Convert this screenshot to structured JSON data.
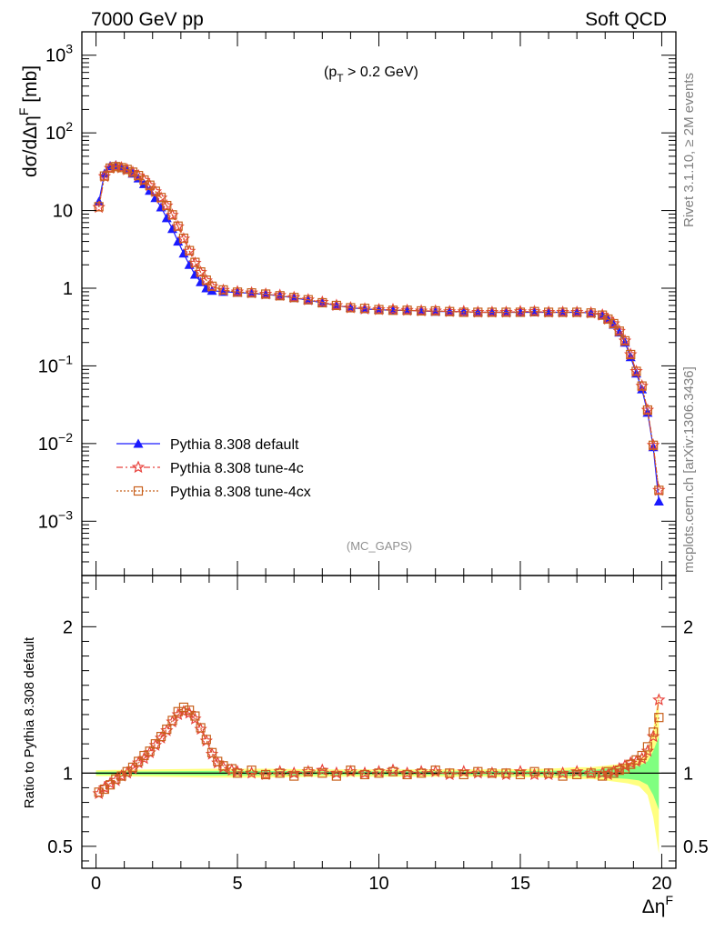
{
  "header": {
    "left": "7000 GeV pp",
    "right": "Soft QCD"
  },
  "annotations": {
    "cut_prefix": "(p",
    "cut_sub": "T",
    "cut_suffix": " > 0.2 GeV)",
    "analysis": "(MC_GAPS)",
    "side_top": "Rivet 3.1.10, ≥ 2M events",
    "side_bottom": "mcplots.cern.ch [arXiv:1306.3436]"
  },
  "colors": {
    "default": "#1a1aff",
    "tune4c": "#e8423c",
    "tune4cx": "#c8601c",
    "band_yellow": "#ffff80",
    "band_green": "#80ff80",
    "axis": "#000000",
    "side_text": "#808080"
  },
  "chart_data": [
    {
      "type": "line",
      "panel": "main",
      "ylabel_main": "dσ/dΔη",
      "ylabel_sup": "F",
      "ylabel_unit": " [mb]",
      "yscale": "log",
      "xlim": [
        -0.5,
        20.5
      ],
      "ylim": [
        0.0002,
        2000
      ],
      "y_tick_labels": [
        {
          "value": 1000,
          "base": "10",
          "exp": "3"
        },
        {
          "value": 100,
          "base": "10",
          "exp": "2"
        },
        {
          "value": 10,
          "base": "10",
          "exp": ""
        },
        {
          "value": 1,
          "base": "1",
          "exp": ""
        },
        {
          "value": 0.1,
          "base": "10",
          "exp": "−1"
        },
        {
          "value": 0.01,
          "base": "10",
          "exp": "−2"
        },
        {
          "value": 0.001,
          "base": "10",
          "exp": "−3"
        }
      ],
      "legend_position": "center-left",
      "x": [
        0.1,
        0.3,
        0.5,
        0.7,
        0.9,
        1.1,
        1.3,
        1.5,
        1.7,
        1.9,
        2.1,
        2.3,
        2.5,
        2.7,
        2.9,
        3.1,
        3.3,
        3.5,
        3.7,
        3.9,
        4.1,
        4.5,
        5.0,
        5.5,
        6.0,
        6.5,
        7.0,
        7.5,
        8.0,
        8.5,
        9.0,
        9.5,
        10.0,
        10.5,
        11.0,
        11.5,
        12.0,
        12.5,
        13.0,
        13.5,
        14.0,
        14.5,
        15.0,
        15.5,
        16.0,
        16.5,
        17.0,
        17.5,
        17.9,
        18.1,
        18.3,
        18.5,
        18.7,
        18.9,
        19.1,
        19.3,
        19.5,
        19.7,
        19.9
      ],
      "series": [
        {
          "name": "Pythia 8.308 default",
          "key": "default",
          "marker": "triangle",
          "values": [
            13.0,
            30.0,
            37.5,
            38.5,
            36.5,
            33.5,
            30.0,
            26.0,
            22.0,
            18.0,
            14.5,
            11.0,
            8.0,
            5.8,
            4.0,
            2.8,
            2.0,
            1.5,
            1.2,
            1.0,
            0.93,
            0.9,
            0.88,
            0.86,
            0.83,
            0.8,
            0.75,
            0.7,
            0.65,
            0.6,
            0.56,
            0.54,
            0.53,
            0.52,
            0.52,
            0.51,
            0.5,
            0.5,
            0.5,
            0.49,
            0.49,
            0.49,
            0.49,
            0.49,
            0.49,
            0.49,
            0.49,
            0.48,
            0.45,
            0.4,
            0.34,
            0.27,
            0.2,
            0.13,
            0.08,
            0.05,
            0.025,
            0.009,
            0.0018
          ]
        },
        {
          "name": "Pythia 8.308 tune-4c",
          "key": "tune4c",
          "marker": "star",
          "values": [
            11.0,
            27.5,
            35.0,
            36.5,
            35.5,
            33.5,
            31.0,
            28.0,
            24.5,
            21.0,
            17.5,
            14.5,
            11.5,
            8.7,
            6.2,
            4.3,
            3.0,
            2.1,
            1.6,
            1.25,
            1.05,
            0.94,
            0.9,
            0.87,
            0.84,
            0.81,
            0.76,
            0.71,
            0.66,
            0.6,
            0.56,
            0.54,
            0.53,
            0.53,
            0.52,
            0.51,
            0.51,
            0.5,
            0.5,
            0.49,
            0.49,
            0.49,
            0.5,
            0.5,
            0.49,
            0.49,
            0.49,
            0.48,
            0.45,
            0.4,
            0.35,
            0.28,
            0.21,
            0.14,
            0.085,
            0.055,
            0.027,
            0.0095,
            0.0025
          ]
        },
        {
          "name": "Pythia 8.308 tune-4cx",
          "key": "tune4cx",
          "marker": "square",
          "values": [
            11.2,
            27.8,
            35.2,
            36.8,
            35.7,
            33.8,
            31.2,
            28.2,
            24.7,
            21.2,
            17.7,
            14.7,
            11.6,
            8.8,
            6.3,
            4.4,
            3.05,
            2.15,
            1.62,
            1.27,
            1.06,
            0.95,
            0.89,
            0.87,
            0.84,
            0.8,
            0.76,
            0.71,
            0.65,
            0.6,
            0.56,
            0.55,
            0.53,
            0.52,
            0.52,
            0.51,
            0.51,
            0.5,
            0.49,
            0.49,
            0.49,
            0.49,
            0.49,
            0.5,
            0.49,
            0.49,
            0.49,
            0.48,
            0.45,
            0.4,
            0.35,
            0.28,
            0.21,
            0.14,
            0.085,
            0.055,
            0.027,
            0.0095,
            0.0025
          ]
        }
      ]
    },
    {
      "type": "line",
      "panel": "ratio",
      "ylabel": "Ratio to Pythia 8.308 default",
      "xlabel_main": "Δη",
      "xlabel_sup": "F",
      "yscale": "linear",
      "xlim": [
        -0.5,
        20.5
      ],
      "ylim": [
        0.35,
        2.35
      ],
      "x_ticks": [
        0,
        5,
        10,
        15,
        20
      ],
      "x_tick_labels": [
        "0",
        "5",
        "10",
        "15",
        "20"
      ],
      "y_ticks": [
        0.5,
        1,
        2
      ],
      "y_tick_labels": [
        "0.5",
        "1",
        "2"
      ],
      "reference_line": 1,
      "x": [
        0.1,
        0.3,
        0.5,
        0.7,
        0.9,
        1.1,
        1.3,
        1.5,
        1.7,
        1.9,
        2.1,
        2.3,
        2.5,
        2.7,
        2.9,
        3.1,
        3.3,
        3.5,
        3.7,
        3.9,
        4.1,
        4.3,
        4.5,
        4.8,
        5.0,
        5.5,
        6.0,
        6.5,
        7.0,
        7.5,
        8.0,
        8.5,
        9.0,
        9.5,
        10.0,
        10.5,
        11.0,
        11.5,
        12.0,
        12.5,
        13.0,
        13.5,
        14.0,
        14.5,
        15.0,
        15.5,
        16.0,
        16.5,
        17.0,
        17.5,
        17.9,
        18.1,
        18.3,
        18.5,
        18.7,
        18.9,
        19.1,
        19.3,
        19.5,
        19.7,
        19.9
      ],
      "series": [
        {
          "name": "Pythia 8.308 tune-4c",
          "key": "tune4c",
          "marker": "star",
          "values": [
            0.86,
            0.9,
            0.93,
            0.95,
            0.98,
            1.0,
            1.03,
            1.07,
            1.1,
            1.14,
            1.19,
            1.24,
            1.29,
            1.35,
            1.4,
            1.42,
            1.41,
            1.37,
            1.3,
            1.22,
            1.13,
            1.07,
            1.04,
            1.02,
            1.01,
            1.0,
            0.99,
            1.01,
            1.0,
            1.01,
            1.02,
            1.0,
            1.01,
            1.0,
            1.01,
            1.02,
            1.0,
            1.01,
            1.01,
            0.99,
            1.01,
            1.0,
            1.0,
            0.99,
            1.01,
            0.99,
            0.99,
            1.0,
            1.01,
            1.0,
            1.0,
            0.99,
            1.01,
            1.03,
            1.05,
            1.07,
            1.08,
            1.1,
            1.15,
            1.25,
            1.5
          ]
        },
        {
          "name": "Pythia 8.308 tune-4cx",
          "key": "tune4cx",
          "marker": "square",
          "values": [
            0.87,
            0.89,
            0.92,
            0.96,
            0.98,
            1.01,
            1.04,
            1.08,
            1.12,
            1.15,
            1.2,
            1.25,
            1.3,
            1.36,
            1.42,
            1.45,
            1.43,
            1.39,
            1.31,
            1.23,
            1.14,
            1.08,
            1.05,
            1.03,
            1.0,
            1.02,
            0.99,
            1.0,
            0.98,
            1.01,
            1.0,
            0.98,
            1.02,
            0.99,
            1.0,
            1.01,
            0.99,
            1.0,
            1.02,
            1.0,
            0.99,
            1.01,
            1.0,
            1.0,
            0.99,
            1.01,
            1.0,
            0.98,
            0.99,
            1.0,
            0.98,
            1.01,
            1.0,
            1.02,
            1.03,
            1.06,
            1.09,
            1.12,
            1.18,
            1.28,
            1.38
          ]
        }
      ],
      "bands": [
        {
          "x": [
            0.0,
            2.0,
            4.0,
            6.0,
            8.0,
            10.0,
            12.0,
            14.0,
            16.0,
            17.0,
            17.5,
            18.0,
            18.4,
            18.8,
            19.2,
            19.5,
            19.7,
            19.9
          ],
          "yellow_half_width": [
            0.02,
            0.025,
            0.03,
            0.03,
            0.025,
            0.025,
            0.025,
            0.025,
            0.03,
            0.04,
            0.04,
            0.05,
            0.06,
            0.07,
            0.09,
            0.15,
            0.3,
            0.55
          ],
          "green_half_width": [
            0.01,
            0.012,
            0.015,
            0.015,
            0.012,
            0.012,
            0.012,
            0.012,
            0.015,
            0.02,
            0.02,
            0.03,
            0.035,
            0.04,
            0.05,
            0.08,
            0.15,
            0.25
          ]
        }
      ]
    }
  ]
}
